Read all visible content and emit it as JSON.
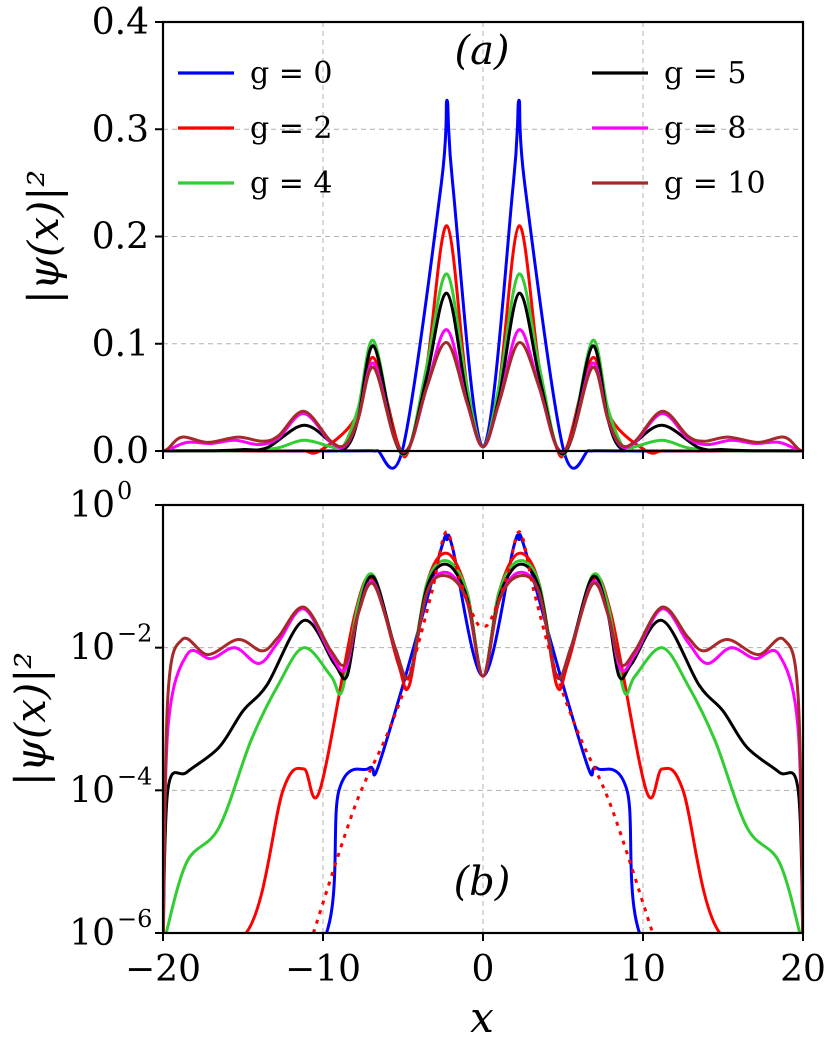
{
  "chart_data": [
    {
      "panel_label": "(a)",
      "type": "line",
      "xlabel": "",
      "ylabel": "|ψ(x)|²",
      "xlim": [
        -20,
        20
      ],
      "ylim": [
        0.0,
        0.4
      ],
      "yscale": "linear",
      "grid": true,
      "xticks": [
        -20,
        -10,
        0,
        10,
        20
      ],
      "yticks": [
        0.0,
        0.1,
        0.2,
        0.3,
        0.4
      ],
      "ytick_labels": [
        "0.0",
        "0.1",
        "0.2",
        "0.3",
        "0.4"
      ],
      "legend": "top, two columns",
      "series": [
        {
          "name": "g = 0",
          "color": "#0000ff",
          "x": [
            -20,
            -10.5,
            -9,
            -7.2,
            -6.9,
            -6.6,
            -5,
            -2.6,
            -2.25,
            -1.9,
            0,
            1.9,
            2.25,
            2.6,
            5,
            6.6,
            6.9,
            7.2,
            9,
            10.5,
            20
          ],
          "y": [
            0,
            0,
            0.0001,
            0.0002,
            0.0002,
            0.0002,
            0.003,
            0.25,
            0.327,
            0.25,
            0.004,
            0.25,
            0.327,
            0.25,
            0.003,
            0.0002,
            0.0002,
            0.0002,
            0.0001,
            0,
            0
          ]
        },
        {
          "name": "g = 2",
          "color": "#ff0000",
          "x": [
            -20,
            -14.8,
            -12.5,
            -11.2,
            -10.2,
            -8,
            -6.85,
            -5.3,
            -4.6,
            -3.5,
            -2.25,
            -1,
            0,
            1,
            2.25,
            3.5,
            4.6,
            5.3,
            6.85,
            8,
            10.2,
            11.2,
            12.5,
            14.8,
            20
          ],
          "y": [
            0,
            1e-06,
            0.0001,
            0.0002,
            0.0001,
            0.03,
            0.087,
            0.006,
            0.003,
            0.08,
            0.21,
            0.06,
            0.004,
            0.06,
            0.21,
            0.08,
            0.003,
            0.006,
            0.087,
            0.03,
            0.0001,
            0.0002,
            0.0001,
            1e-06,
            0
          ]
        },
        {
          "name": "g = 4",
          "color": "#32cd32",
          "x": [
            -20,
            -19.8,
            -18.5,
            -16.5,
            -14.5,
            -12.8,
            -11.2,
            -9.5,
            -8.8,
            -7.8,
            -6.85,
            -5.5,
            -4.6,
            -3.5,
            -2.25,
            -1,
            0,
            1,
            2.25,
            3.5,
            4.6,
            5.5,
            6.85,
            7.8,
            8.8,
            9.5,
            11.2,
            12.8,
            14.5,
            16.5,
            18.5,
            19.8,
            20
          ],
          "y": [
            0,
            1e-06,
            1e-05,
            3e-05,
            0.0005,
            0.003,
            0.01,
            0.004,
            0.0025,
            0.04,
            0.103,
            0.01,
            0.004,
            0.08,
            0.165,
            0.06,
            0.004,
            0.06,
            0.165,
            0.08,
            0.004,
            0.01,
            0.103,
            0.04,
            0.0025,
            0.004,
            0.01,
            0.003,
            0.0005,
            3e-05,
            1e-05,
            1e-06,
            0
          ]
        },
        {
          "name": "g = 5",
          "color": "#000000",
          "x": [
            -20,
            -19.7,
            -18.5,
            -16.5,
            -15,
            -13.5,
            -11.2,
            -9.3,
            -8.5,
            -7.8,
            -6.85,
            -5.5,
            -4.6,
            -3.5,
            -2.25,
            -1,
            0,
            1,
            2.25,
            3.5,
            4.6,
            5.5,
            6.85,
            7.8,
            8.5,
            9.3,
            11.2,
            13.5,
            15,
            16.5,
            18.5,
            19.7,
            20
          ],
          "y": [
            0,
            0.0001,
            0.00018,
            0.0004,
            0.0013,
            0.003,
            0.024,
            0.006,
            0.004,
            0.03,
            0.098,
            0.01,
            0.004,
            0.07,
            0.147,
            0.05,
            0.004,
            0.05,
            0.147,
            0.07,
            0.004,
            0.01,
            0.098,
            0.03,
            0.004,
            0.006,
            0.024,
            0.003,
            0.0013,
            0.0004,
            0.00018,
            0.0001,
            0
          ]
        },
        {
          "name": "g = 8",
          "color": "#ff00ff",
          "x": [
            -20,
            -19.7,
            -18.5,
            -17,
            -15.5,
            -14,
            -12.8,
            -11.2,
            -9.5,
            -8.6,
            -7.8,
            -6.85,
            -5.5,
            -4.6,
            -3.5,
            -2.25,
            -1,
            0,
            1,
            2.25,
            3.5,
            4.6,
            5.5,
            6.85,
            7.8,
            8.6,
            9.5,
            11.2,
            12.8,
            14,
            15.5,
            17,
            18.5,
            19.7,
            20
          ],
          "y": [
            0,
            0.0007,
            0.008,
            0.007,
            0.01,
            0.006,
            0.012,
            0.035,
            0.008,
            0.005,
            0.03,
            0.082,
            0.01,
            0.004,
            0.06,
            0.113,
            0.045,
            0.004,
            0.045,
            0.113,
            0.06,
            0.004,
            0.01,
            0.082,
            0.03,
            0.005,
            0.008,
            0.035,
            0.012,
            0.006,
            0.01,
            0.007,
            0.008,
            0.0007,
            0
          ]
        },
        {
          "name": "g = 10",
          "color": "#a52a2a",
          "x": [
            -20,
            -19.7,
            -18.8,
            -17.2,
            -15.3,
            -13.8,
            -12.8,
            -11.2,
            -9.5,
            -8.6,
            -7.8,
            -6.85,
            -5.5,
            -4.6,
            -3.5,
            -2.25,
            -1,
            0,
            1,
            2.25,
            3.5,
            4.6,
            5.5,
            6.85,
            7.8,
            8.6,
            9.5,
            11.2,
            12.8,
            13.8,
            15.3,
            17.2,
            18.8,
            19.7,
            20
          ],
          "y": [
            0,
            0.002,
            0.013,
            0.008,
            0.013,
            0.009,
            0.014,
            0.037,
            0.009,
            0.006,
            0.03,
            0.078,
            0.01,
            0.004,
            0.06,
            0.101,
            0.045,
            0.004,
            0.045,
            0.101,
            0.06,
            0.004,
            0.01,
            0.078,
            0.03,
            0.006,
            0.009,
            0.037,
            0.014,
            0.009,
            0.013,
            0.008,
            0.013,
            0.002,
            0
          ]
        }
      ]
    },
    {
      "panel_label": "(b)",
      "type": "line",
      "xlabel": "x",
      "ylabel": "|ψ(x)|²",
      "xlim": [
        -20,
        20
      ],
      "ylim": [
        1e-06,
        1
      ],
      "yscale": "log",
      "grid": true,
      "xticks": [
        -20,
        -10,
        0,
        10,
        20
      ],
      "xtick_labels": [
        "−20",
        "−10",
        "0",
        "10",
        "20"
      ],
      "yticks": [
        1e-06,
        0.0001,
        0.01,
        1
      ],
      "ytick_bases": [
        "10",
        "10",
        "10",
        "10"
      ],
      "ytick_exponents": [
        "−6",
        "−4",
        "−2",
        "0"
      ],
      "series_ref": "same series as panel (a)",
      "extra_series": [
        {
          "name": "reference (dotted)",
          "color": "#ff0000",
          "style": "dotted",
          "x": [
            -10.6,
            -8,
            -6,
            -4.5,
            -3.2,
            -2.3,
            -1.5,
            -0.5,
            0,
            0.5,
            1.5,
            2.3,
            3.2,
            4.5,
            6,
            8,
            10.6
          ],
          "y": [
            1e-06,
            6e-05,
            0.0006,
            0.005,
            0.06,
            0.42,
            0.1,
            0.025,
            0.02,
            0.025,
            0.1,
            0.42,
            0.06,
            0.005,
            0.0006,
            6e-05,
            1e-06
          ]
        }
      ]
    }
  ]
}
